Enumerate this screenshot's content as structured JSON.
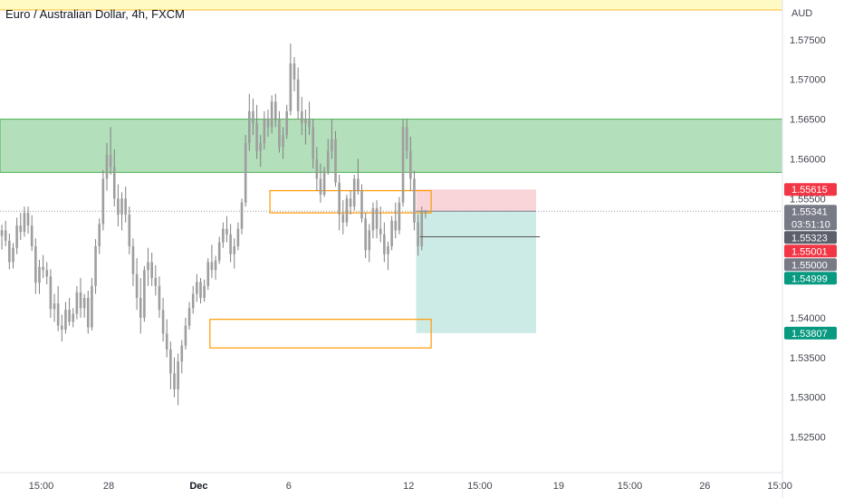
{
  "chart_data": {
    "type": "candlestick",
    "title": "Euro / Australian Dollar, 4h, FXCM",
    "currency": "AUD",
    "ylim": [
      1.5205,
      1.58
    ],
    "x_tick_labels": [
      {
        "label": "15:00",
        "i": 11,
        "bold": false
      },
      {
        "label": "28",
        "i": 29,
        "bold": false
      },
      {
        "label": "Dec",
        "i": 53,
        "bold": true
      },
      {
        "label": "6",
        "i": 77,
        "bold": false
      },
      {
        "label": "12",
        "i": 109,
        "bold": false
      },
      {
        "label": "15:00",
        "i": 128,
        "bold": false
      },
      {
        "label": "19",
        "i": 149,
        "bold": false
      },
      {
        "label": "15:00",
        "i": 168,
        "bold": false
      },
      {
        "label": "26",
        "i": 188,
        "bold": false
      },
      {
        "label": "15:00",
        "i": 208,
        "bold": false
      }
    ],
    "y_tick_labels": [
      "1.52500",
      "1.53000",
      "1.53500",
      "1.54000",
      "1.55000",
      "1.55500",
      "1.56000",
      "1.56500",
      "1.57000",
      "1.57500"
    ],
    "supply_zone": {
      "from": 1.5583,
      "to": 1.565,
      "color": "#b3dfbb",
      "border": "#4caf50"
    },
    "order_blocks": [
      {
        "i_from": 72,
        "i_to": 115,
        "from": 1.5532,
        "to": 1.556,
        "color": "#ff9800"
      },
      {
        "i_from": 56,
        "i_to": 115,
        "from": 1.5362,
        "to": 1.5398,
        "color": "#ff9800"
      }
    ],
    "position": {
      "i_from": 111,
      "i_to": 143,
      "entry": 1.55341,
      "stop": 1.55615,
      "target": 1.53807,
      "stop_color": "#f9d5d9",
      "target_color": "#cdebe6"
    },
    "target_line": {
      "i_from": 112,
      "i_to": 144,
      "y": 1.5502
    },
    "price_tags": [
      {
        "text": "1.55615",
        "value": 1.55615,
        "bg": "#f23645"
      },
      {
        "text": "1.55341",
        "value": 1.55341,
        "bg": "#787b86",
        "sub": "03:51:10"
      },
      {
        "text": "1.55323",
        "value": 1.55323,
        "bg": "#5d606b"
      },
      {
        "text": "1.55001",
        "value": 1.55001,
        "bg": "#f23645"
      },
      {
        "text": "1.55000",
        "value": 1.55,
        "bg": "#787b86"
      },
      {
        "text": "1.54999",
        "value": 1.54999,
        "bg": "#089981"
      },
      {
        "text": "1.53807",
        "value": 1.53807,
        "bg": "#089981"
      }
    ],
    "candles": [
      [
        1.5503,
        1.5517,
        1.5486,
        1.551
      ],
      [
        1.551,
        1.5522,
        1.549,
        1.5497
      ],
      [
        1.5497,
        1.5506,
        1.5461,
        1.547
      ],
      [
        1.547,
        1.5494,
        1.5462,
        1.5488
      ],
      [
        1.5488,
        1.5526,
        1.548,
        1.5516
      ],
      [
        1.5516,
        1.5532,
        1.5498,
        1.5508
      ],
      [
        1.5508,
        1.554,
        1.5502,
        1.5532
      ],
      [
        1.5532,
        1.554,
        1.5506,
        1.5516
      ],
      [
        1.5516,
        1.5529,
        1.5484,
        1.549
      ],
      [
        1.549,
        1.55,
        1.543,
        1.5444
      ],
      [
        1.5444,
        1.5473,
        1.543,
        1.5464
      ],
      [
        1.5464,
        1.5479,
        1.545,
        1.546
      ],
      [
        1.546,
        1.547,
        1.5442,
        1.5452
      ],
      [
        1.5452,
        1.5461,
        1.54,
        1.5411
      ],
      [
        1.5411,
        1.543,
        1.5395,
        1.5418
      ],
      [
        1.5418,
        1.544,
        1.5383,
        1.539
      ],
      [
        1.539,
        1.5404,
        1.537,
        1.5385
      ],
      [
        1.5385,
        1.542,
        1.538,
        1.541
      ],
      [
        1.541,
        1.5425,
        1.539,
        1.5395
      ],
      [
        1.5395,
        1.5412,
        1.5388,
        1.5405
      ],
      [
        1.5405,
        1.544,
        1.5398,
        1.5432
      ],
      [
        1.5432,
        1.545,
        1.54,
        1.5412
      ],
      [
        1.5412,
        1.543,
        1.54,
        1.5425
      ],
      [
        1.5425,
        1.5434,
        1.538,
        1.5388
      ],
      [
        1.5388,
        1.545,
        1.5384,
        1.544
      ],
      [
        1.544,
        1.5499,
        1.543,
        1.549
      ],
      [
        1.549,
        1.5525,
        1.548,
        1.5518
      ],
      [
        1.5518,
        1.5586,
        1.551,
        1.5575
      ],
      [
        1.5575,
        1.562,
        1.556,
        1.5605
      ],
      [
        1.5605,
        1.564,
        1.558,
        1.559
      ],
      [
        1.559,
        1.5612,
        1.554,
        1.555
      ],
      [
        1.555,
        1.5568,
        1.5515,
        1.553
      ],
      [
        1.553,
        1.5558,
        1.551,
        1.555
      ],
      [
        1.555,
        1.5565,
        1.552,
        1.553
      ],
      [
        1.553,
        1.554,
        1.548,
        1.549
      ],
      [
        1.549,
        1.55,
        1.544,
        1.5455
      ],
      [
        1.5455,
        1.5475,
        1.541,
        1.5425
      ],
      [
        1.5425,
        1.545,
        1.538,
        1.54
      ],
      [
        1.54,
        1.5465,
        1.5395,
        1.546
      ],
      [
        1.546,
        1.5488,
        1.544,
        1.547
      ],
      [
        1.547,
        1.5482,
        1.544,
        1.545
      ],
      [
        1.545,
        1.5466,
        1.5428,
        1.544
      ],
      [
        1.544,
        1.5452,
        1.54,
        1.541
      ],
      [
        1.541,
        1.5425,
        1.537,
        1.538
      ],
      [
        1.538,
        1.5398,
        1.535,
        1.536
      ],
      [
        1.536,
        1.537,
        1.531,
        1.533
      ],
      [
        1.533,
        1.535,
        1.53,
        1.531
      ],
      [
        1.531,
        1.5355,
        1.529,
        1.5345
      ],
      [
        1.5345,
        1.5372,
        1.533,
        1.5365
      ],
      [
        1.5365,
        1.54,
        1.536,
        1.539
      ],
      [
        1.539,
        1.542,
        1.5385,
        1.5412
      ],
      [
        1.5412,
        1.544,
        1.5405,
        1.543
      ],
      [
        1.543,
        1.5455,
        1.542,
        1.5445
      ],
      [
        1.5445,
        1.545,
        1.5418,
        1.5425
      ],
      [
        1.5425,
        1.5448,
        1.542,
        1.544
      ],
      [
        1.544,
        1.5475,
        1.5435,
        1.547
      ],
      [
        1.547,
        1.5492,
        1.545,
        1.546
      ],
      [
        1.546,
        1.5478,
        1.5448,
        1.5472
      ],
      [
        1.5472,
        1.5502,
        1.5468,
        1.5495
      ],
      [
        1.5495,
        1.552,
        1.5488,
        1.5512
      ],
      [
        1.5512,
        1.5528,
        1.5495,
        1.5505
      ],
      [
        1.5505,
        1.5518,
        1.547,
        1.548
      ],
      [
        1.548,
        1.55,
        1.5462,
        1.549
      ],
      [
        1.549,
        1.552,
        1.5485,
        1.5512
      ],
      [
        1.5512,
        1.555,
        1.5505,
        1.5545
      ],
      [
        1.5545,
        1.563,
        1.554,
        1.562
      ],
      [
        1.562,
        1.5682,
        1.561,
        1.566
      ],
      [
        1.566,
        1.5676,
        1.563,
        1.5645
      ],
      [
        1.5645,
        1.5668,
        1.56,
        1.561
      ],
      [
        1.561,
        1.563,
        1.559,
        1.562
      ],
      [
        1.562,
        1.566,
        1.5612,
        1.565
      ],
      [
        1.565,
        1.5662,
        1.5628,
        1.564
      ],
      [
        1.564,
        1.568,
        1.5632,
        1.5672
      ],
      [
        1.5672,
        1.5682,
        1.564,
        1.565
      ],
      [
        1.565,
        1.566,
        1.5608,
        1.5615
      ],
      [
        1.5615,
        1.564,
        1.56,
        1.563
      ],
      [
        1.563,
        1.5668,
        1.5625,
        1.566
      ],
      [
        1.566,
        1.5745,
        1.5655,
        1.572
      ],
      [
        1.572,
        1.5728,
        1.5685,
        1.57
      ],
      [
        1.57,
        1.5715,
        1.565,
        1.566
      ],
      [
        1.566,
        1.5678,
        1.563,
        1.5645
      ],
      [
        1.5645,
        1.5662,
        1.5618,
        1.565
      ],
      [
        1.565,
        1.5672,
        1.563,
        1.564
      ],
      [
        1.564,
        1.565,
        1.5588,
        1.56
      ],
      [
        1.56,
        1.5615,
        1.556,
        1.5575
      ],
      [
        1.5575,
        1.5594,
        1.5545,
        1.5555
      ],
      [
        1.5555,
        1.559,
        1.5552,
        1.5585
      ],
      [
        1.5585,
        1.5625,
        1.558,
        1.561
      ],
      [
        1.561,
        1.565,
        1.56,
        1.5625
      ],
      [
        1.5625,
        1.5635,
        1.5565,
        1.557
      ],
      [
        1.557,
        1.558,
        1.551,
        1.553
      ],
      [
        1.553,
        1.5548,
        1.5505,
        1.552
      ],
      [
        1.552,
        1.5555,
        1.5515,
        1.555
      ],
      [
        1.555,
        1.556,
        1.553,
        1.554
      ],
      [
        1.554,
        1.558,
        1.5535,
        1.5575
      ],
      [
        1.5575,
        1.56,
        1.5555,
        1.556
      ],
      [
        1.556,
        1.5568,
        1.552,
        1.5525
      ],
      [
        1.5525,
        1.5532,
        1.5475,
        1.5485
      ],
      [
        1.5485,
        1.5518,
        1.547,
        1.551
      ],
      [
        1.551,
        1.5545,
        1.55,
        1.5538
      ],
      [
        1.5538,
        1.5548,
        1.55,
        1.5512
      ],
      [
        1.5512,
        1.554,
        1.5495,
        1.5505
      ],
      [
        1.5505,
        1.552,
        1.547,
        1.548
      ],
      [
        1.548,
        1.5496,
        1.546,
        1.549
      ],
      [
        1.549,
        1.5528,
        1.5485,
        1.5522
      ],
      [
        1.5522,
        1.5545,
        1.55,
        1.551
      ],
      [
        1.551,
        1.5552,
        1.5505,
        1.5545
      ],
      [
        1.5545,
        1.565,
        1.554,
        1.564
      ],
      [
        1.564,
        1.565,
        1.56,
        1.561
      ],
      [
        1.561,
        1.5628,
        1.556,
        1.5575
      ],
      [
        1.5575,
        1.5585,
        1.551,
        1.552
      ],
      [
        1.552,
        1.553,
        1.5478,
        1.549
      ],
      [
        1.549,
        1.554,
        1.5485,
        1.5534
      ],
      [
        1.5534,
        1.5536,
        1.5525,
        1.5534
      ]
    ]
  }
}
